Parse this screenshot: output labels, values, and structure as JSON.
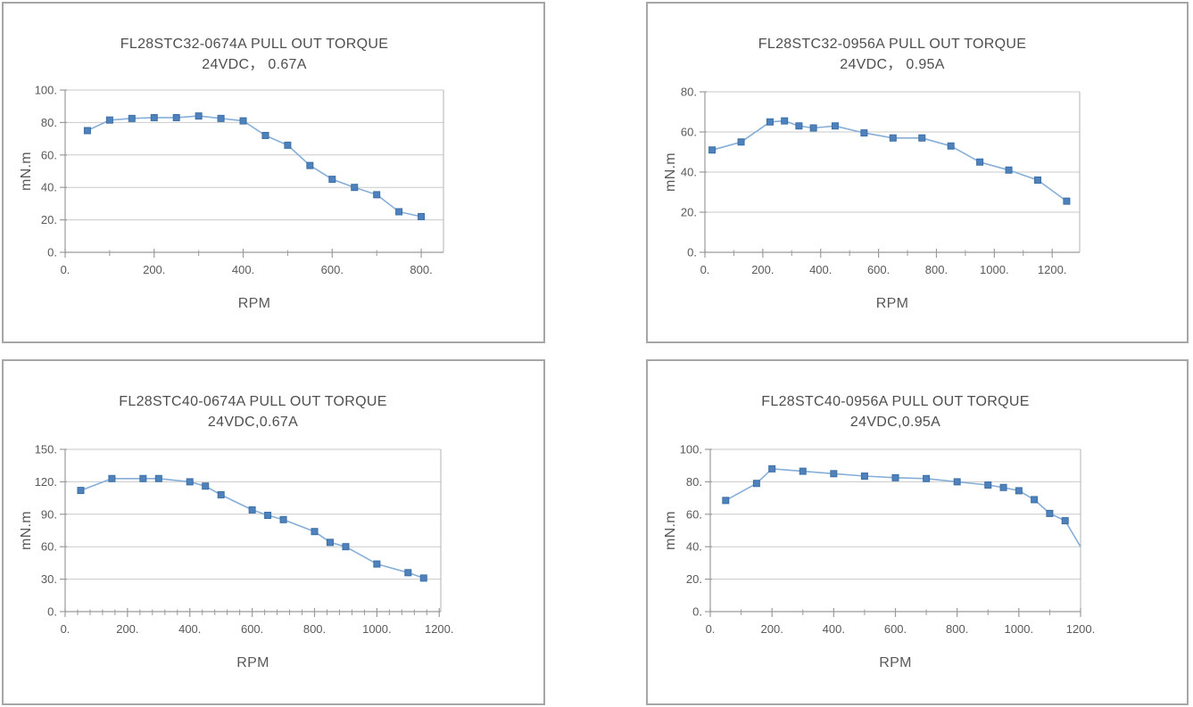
{
  "page": {
    "background": "#ffffff",
    "panel_border_color": "#a6a6a6"
  },
  "colors": {
    "marker_fill": "#4f81bd",
    "marker_edge": "#3c70a4",
    "line": "#86aed8",
    "gridline": "#c9c9c9",
    "axis": "#9b9b9b",
    "plot_border": "#b3b3b3",
    "text": "#595959"
  },
  "chart_data": [
    {
      "type": "line",
      "title": "FL28STC32-0674A  PULL OUT TORQUE",
      "subtitle": "24VDC， 0.67A",
      "xlabel": "RPM",
      "ylabel": "mN.m",
      "xlim": [
        0,
        850
      ],
      "ylim": [
        0,
        100
      ],
      "grid": "horizontal",
      "legend": "none",
      "x_tick_values": [
        0,
        200,
        400,
        600,
        800
      ],
      "x_tick_labels": [
        "0.",
        "200.",
        "400.",
        "600.",
        "800."
      ],
      "x_minor_ticks": [
        100,
        300,
        500,
        700
      ],
      "y_tick_values": [
        0,
        20,
        40,
        60,
        80,
        100
      ],
      "y_tick_labels": [
        "0.",
        "20.",
        "40.",
        "60.",
        "80.",
        "100."
      ],
      "points": [
        [
          50,
          75
        ],
        [
          100,
          81.5
        ],
        [
          150,
          82.5
        ],
        [
          200,
          83
        ],
        [
          250,
          83
        ],
        [
          300,
          84
        ],
        [
          350,
          82.5
        ],
        [
          400,
          81
        ],
        [
          450,
          72
        ],
        [
          500,
          66
        ],
        [
          550,
          53.5
        ],
        [
          600,
          45
        ],
        [
          650,
          40
        ],
        [
          700,
          35.5
        ],
        [
          750,
          25
        ],
        [
          800,
          22
        ]
      ],
      "marker_skip_x": []
    },
    {
      "type": "line",
      "title": "FL28STC32-0956A  PULL OUT TORQUE",
      "subtitle": "24VDC， 0.95A",
      "xlabel": "RPM",
      "ylabel": "mN.m",
      "xlim": [
        0,
        1295
      ],
      "ylim": [
        0,
        80
      ],
      "grid": "horizontal",
      "legend": "none",
      "x_tick_values": [
        0,
        200,
        400,
        600,
        800,
        1000,
        1200
      ],
      "x_tick_labels": [
        "0.",
        "200.",
        "400.",
        "600.",
        "800.",
        "1000.",
        "1200."
      ],
      "x_minor_ticks": [
        100,
        300,
        500,
        700,
        900,
        1100
      ],
      "y_tick_values": [
        0,
        20,
        40,
        60,
        80
      ],
      "y_tick_labels": [
        "0.",
        "20.",
        "40.",
        "60.",
        "80."
      ],
      "points": [
        [
          25,
          51
        ],
        [
          125,
          55
        ],
        [
          225,
          65
        ],
        [
          275,
          65.5
        ],
        [
          325,
          63
        ],
        [
          375,
          62
        ],
        [
          450,
          63
        ],
        [
          550,
          59.5
        ],
        [
          650,
          57
        ],
        [
          750,
          57
        ],
        [
          850,
          53
        ],
        [
          950,
          45
        ],
        [
          1050,
          41
        ],
        [
          1150,
          36
        ],
        [
          1250,
          25.5
        ]
      ],
      "marker_skip_x": []
    },
    {
      "type": "line",
      "title": "FL28STC40-0674A PULL OUT TORQUE",
      "subtitle": "24VDC,0.67A",
      "xlabel": "RPM",
      "ylabel": "mN.m",
      "xlim": [
        0,
        1205
      ],
      "ylim": [
        0,
        150
      ],
      "grid": "horizontal",
      "legend": "none",
      "x_tick_values": [
        0,
        200,
        400,
        600,
        800,
        1000,
        1200
      ],
      "x_tick_labels": [
        "0.",
        "200.",
        "400.",
        "600.",
        "800.",
        "1000.",
        "1200."
      ],
      "x_minor_ticks": [
        40,
        80,
        120,
        160,
        240,
        280,
        320,
        360,
        440,
        480,
        520,
        560,
        640,
        680,
        720,
        760,
        840,
        880,
        920,
        960,
        1040,
        1080,
        1120,
        1160
      ],
      "y_tick_values": [
        0,
        30,
        60,
        90,
        120,
        150
      ],
      "y_tick_labels": [
        "0.",
        "30.",
        "60.",
        "90.",
        "120.",
        "150."
      ],
      "points": [
        [
          50,
          112
        ],
        [
          150,
          123
        ],
        [
          250,
          123
        ],
        [
          300,
          123
        ],
        [
          400,
          120
        ],
        [
          450,
          116
        ],
        [
          500,
          108
        ],
        [
          600,
          94
        ],
        [
          650,
          89
        ],
        [
          700,
          85
        ],
        [
          800,
          74
        ],
        [
          850,
          64
        ],
        [
          900,
          60
        ],
        [
          1000,
          44
        ],
        [
          1100,
          36
        ],
        [
          1150,
          31
        ]
      ],
      "marker_skip_x": []
    },
    {
      "type": "line",
      "title": "FL28STC40-0956A PULL OUT TORQUE",
      "subtitle": "24VDC,0.95A",
      "xlabel": "RPM",
      "ylabel": "mN.m",
      "xlim": [
        0,
        1200
      ],
      "ylim": [
        0,
        100
      ],
      "grid": "horizontal",
      "legend": "none",
      "x_tick_values": [
        0,
        200,
        400,
        600,
        800,
        1000,
        1200
      ],
      "x_tick_labels": [
        "0.",
        "200.",
        "400.",
        "600.",
        "800.",
        "1000.",
        "1200."
      ],
      "x_minor_ticks": [
        100,
        300,
        500,
        700,
        900,
        1100
      ],
      "y_tick_values": [
        0,
        20,
        40,
        60,
        80,
        100
      ],
      "y_tick_labels": [
        "0.",
        "20.",
        "40.",
        "60.",
        "80.",
        "100."
      ],
      "points": [
        [
          50,
          68.5
        ],
        [
          150,
          79
        ],
        [
          200,
          88
        ],
        [
          300,
          86.5
        ],
        [
          400,
          85
        ],
        [
          500,
          83.5
        ],
        [
          600,
          82.5
        ],
        [
          700,
          82
        ],
        [
          800,
          80
        ],
        [
          900,
          78
        ],
        [
          950,
          76.5
        ],
        [
          1000,
          74.5
        ],
        [
          1050,
          69
        ],
        [
          1100,
          60.5
        ],
        [
          1150,
          56
        ],
        [
          1200,
          40
        ]
      ],
      "marker_skip_x": [
        1200
      ]
    }
  ]
}
